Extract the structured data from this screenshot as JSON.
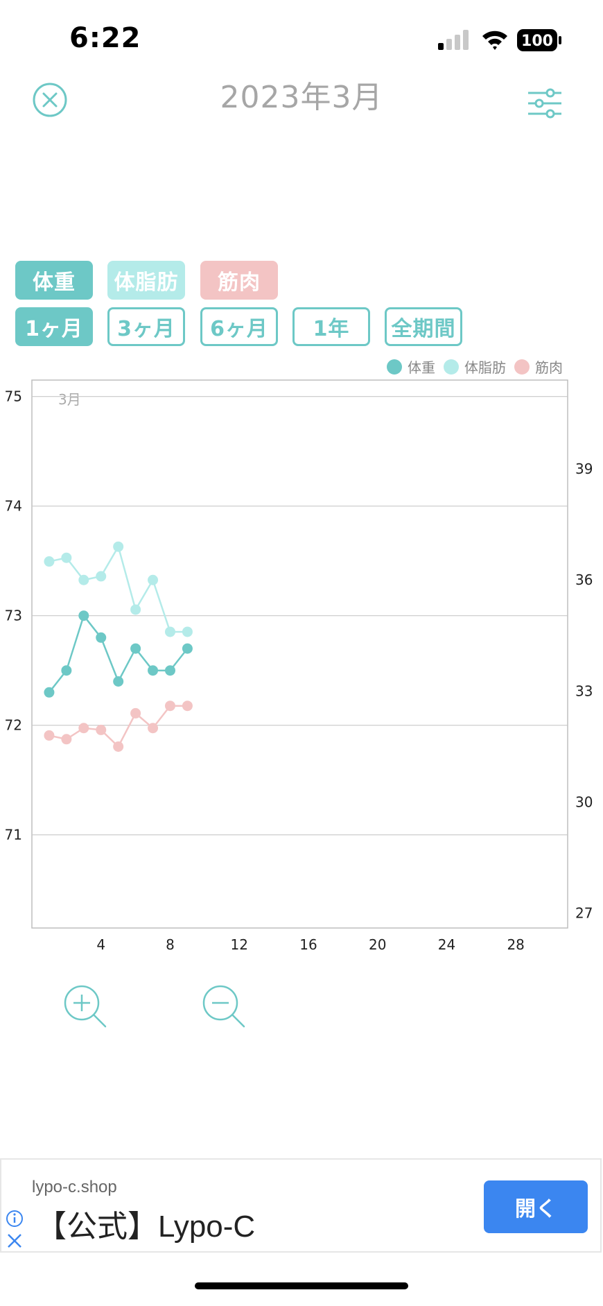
{
  "status_bar": {
    "time": "6:22",
    "battery": "100"
  },
  "header": {
    "title": "2023年3月"
  },
  "metric_tabs": [
    {
      "label": "体重"
    },
    {
      "label": "体脂肪"
    },
    {
      "label": "筋肉"
    }
  ],
  "period_tabs": [
    {
      "label": "1ヶ月",
      "active": true
    },
    {
      "label": "3ヶ月",
      "active": false
    },
    {
      "label": "6ヶ月",
      "active": false
    },
    {
      "label": "1年",
      "active": false
    },
    {
      "label": "全期間",
      "active": false
    }
  ],
  "colors": {
    "weight": "#6dc8c6",
    "fat": "#b4ebe9",
    "muscle": "#f3c4c4",
    "accent": "#6dc8c6",
    "ad_button": "#3b86f0"
  },
  "chart_data": {
    "type": "line",
    "month_label": "3月",
    "x_ticks": [
      4,
      8,
      12,
      16,
      20,
      24,
      28
    ],
    "xlim": [
      0,
      31
    ],
    "y_left_ticks": [
      75,
      74,
      73,
      72,
      71
    ],
    "y_left_lim": [
      70.15,
      75.15
    ],
    "y_right_ticks": [
      39,
      36,
      33,
      30,
      27
    ],
    "y_right_lim": [
      26.6,
      41.4
    ],
    "legend_position": "top-right",
    "grid": true,
    "series": [
      {
        "name": "体重",
        "axis": "left",
        "color": "#6dc8c6",
        "x": [
          1,
          2,
          3,
          4,
          5,
          6,
          7,
          8,
          9
        ],
        "y": [
          72.3,
          72.5,
          73.0,
          72.8,
          72.4,
          72.7,
          72.5,
          72.5,
          72.7
        ]
      },
      {
        "name": "体脂肪",
        "axis": "right",
        "color": "#b4ebe9",
        "x": [
          1,
          2,
          3,
          4,
          5,
          6,
          7,
          8,
          9
        ],
        "y": [
          36.5,
          36.6,
          36.0,
          36.1,
          36.9,
          35.2,
          36.0,
          34.6,
          34.6
        ]
      },
      {
        "name": "筋肉",
        "axis": "right",
        "color": "#f3c4c4",
        "x": [
          1,
          2,
          3,
          4,
          5,
          6,
          7,
          8,
          9
        ],
        "y": [
          31.8,
          31.7,
          32.0,
          31.95,
          31.5,
          32.4,
          32.0,
          32.6,
          32.6
        ]
      }
    ]
  },
  "ad": {
    "domain": "lypo-c.shop",
    "title": "【公式】Lypo-C",
    "button": "開く"
  }
}
